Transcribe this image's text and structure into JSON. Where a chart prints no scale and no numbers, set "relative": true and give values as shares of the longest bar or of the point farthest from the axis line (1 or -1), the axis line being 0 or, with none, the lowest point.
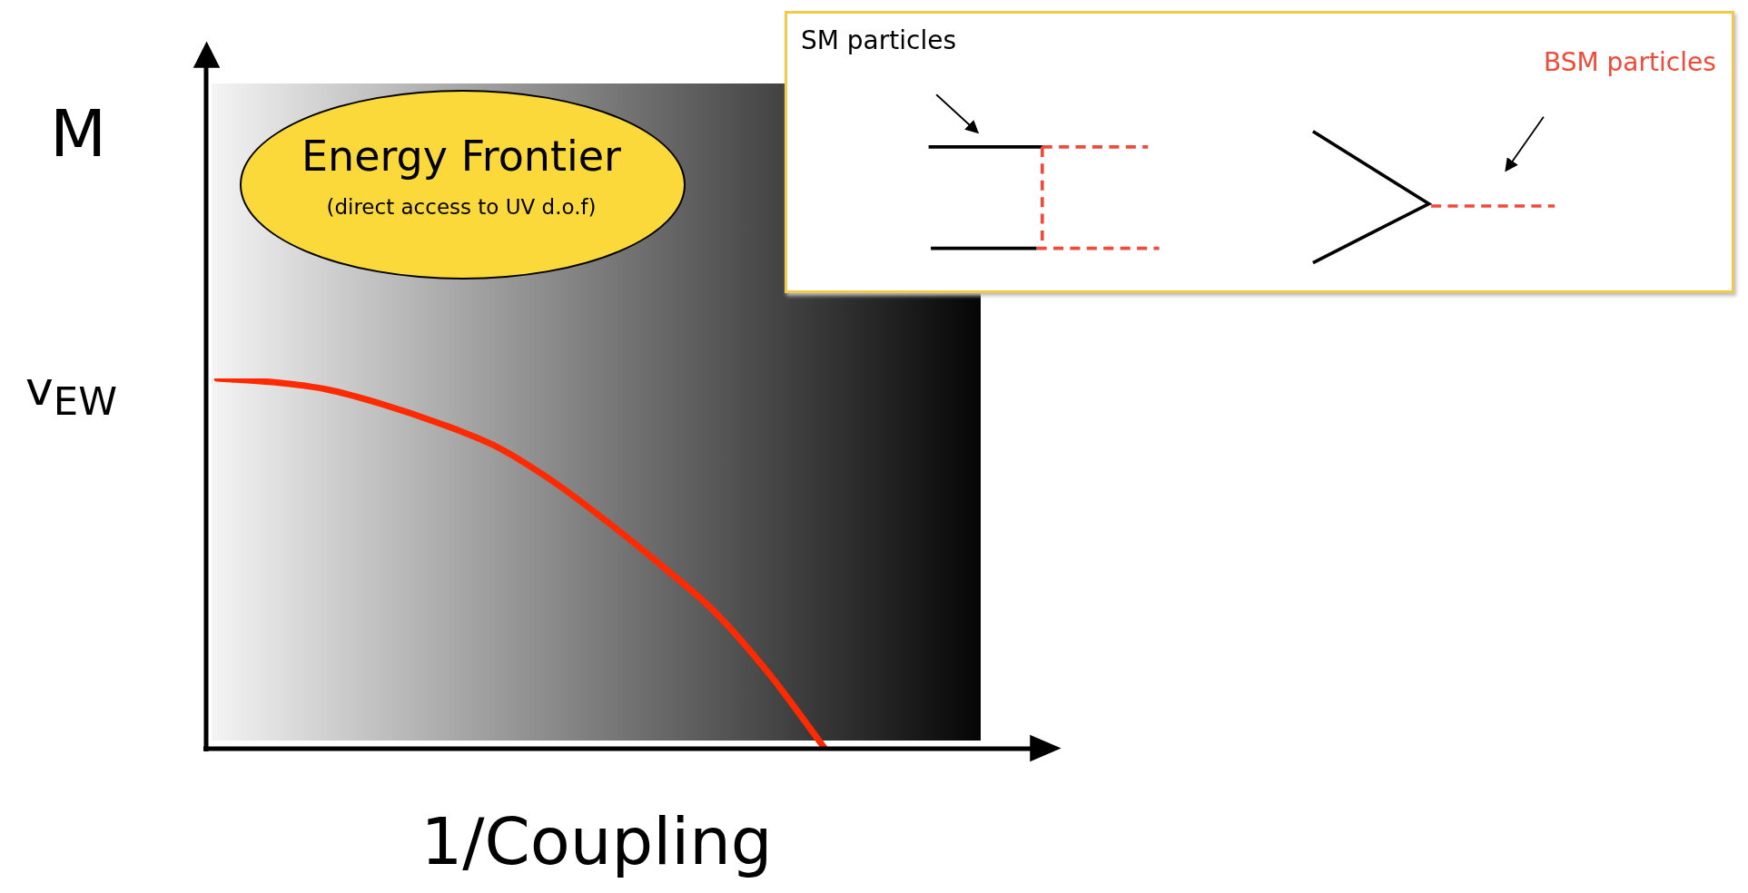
{
  "chart_data": {
    "type": "line",
    "relative": true,
    "xlabel": "1/Coupling",
    "ylabel": "M",
    "categories": [
      null,
      null,
      null,
      null,
      null,
      null,
      null,
      null,
      null,
      null,
      null,
      null,
      null,
      null,
      null,
      null
    ],
    "series": [
      {
        "color": "#ff2a00",
        "values": [
          1.0,
          0.99,
          0.97,
          0.93,
          0.88,
          0.82,
          0.73,
          0.62,
          0.5,
          0.37,
          0.2,
          0.0,
          null,
          null,
          null,
          null
        ]
      }
    ],
    "marker": "none",
    "legend": false,
    "tick_labels": false,
    "annotations": [
      "v$_{EW}$",
      "Energy Frontier",
      "(direct access to UV d.o.f)",
      "SM particles",
      "BSM particles"
    ]
  }
}
